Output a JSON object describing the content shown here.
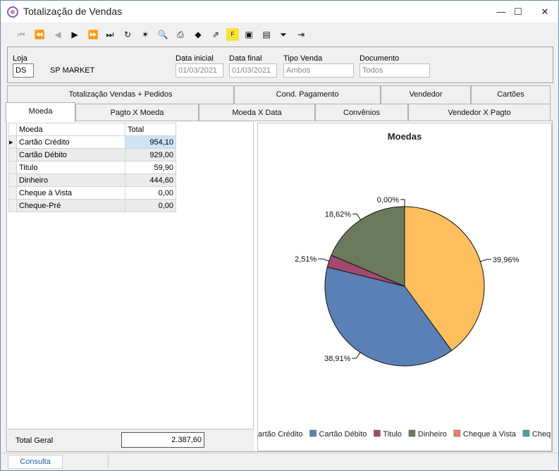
{
  "window": {
    "title": "Totalização de Vendas"
  },
  "window_buttons": {
    "minimize": "—",
    "maximize": "☐",
    "close": "✕"
  },
  "filters": {
    "loja_label": "Loja",
    "loja_value": "DS",
    "loja_name": "SP MARKET",
    "data_inicial_label": "Data inicial",
    "data_inicial_value": "01/03/2021",
    "data_final_label": "Data final",
    "data_final_value": "01/03/2021",
    "tipo_venda_label": "Tipo Venda",
    "tipo_venda_value": "Ambos",
    "documento_label": "Documento",
    "documento_value": "Todos"
  },
  "tabs_row1": [
    {
      "label": "Totalização Vendas + Pedidos"
    },
    {
      "label": "Cond. Pagamento"
    },
    {
      "label": "Vendedor"
    },
    {
      "label": "Cartões"
    }
  ],
  "tabs_row2": [
    {
      "label": "Moeda"
    },
    {
      "label": "Pagto X Moeda"
    },
    {
      "label": "Moeda X Data"
    },
    {
      "label": "Convênios"
    },
    {
      "label": "Vendedor X Pagto"
    }
  ],
  "grid": {
    "headers": [
      "Moeda",
      "Total"
    ],
    "rows": [
      {
        "moeda": "Cartão Crédito",
        "total": "954,10"
      },
      {
        "moeda": "Cartão Débito",
        "total": "929,00"
      },
      {
        "moeda": "Titulo",
        "total": "59,90"
      },
      {
        "moeda": "Dinheiro",
        "total": "444,60"
      },
      {
        "moeda": "Cheque à Vista",
        "total": "0,00"
      },
      {
        "moeda": "Cheque-Pré",
        "total": "0,00"
      }
    ]
  },
  "total_geral": {
    "label": "Total Geral",
    "value": "2.387,60"
  },
  "chart_data": {
    "type": "pie",
    "title": "Moedas",
    "categories": [
      "Cartão Crédito",
      "Cartão Débito",
      "Titulo",
      "Dinheiro",
      "Cheque à Vista",
      "Cheque-Pré"
    ],
    "values": [
      954.1,
      929.0,
      59.9,
      444.6,
      0.0,
      0.0
    ],
    "labels": [
      "39,96%",
      "38,91%",
      "2,51%",
      "18,62%",
      "0,00%",
      "0,00%"
    ],
    "colors": [
      "#ffbf5f",
      "#5b80b8",
      "#a14a6e",
      "#6b7a5c",
      "#e8806a",
      "#4f9e99"
    ],
    "visible_labels": [
      "39,96%",
      "38,91%",
      "2,51%",
      "18,62%",
      "0,00%"
    ],
    "legend": [
      "Cartão Crédito",
      "Cartão Débito",
      "Titulo",
      "Dinheiro",
      "Cheque à Vista",
      "Cheque"
    ],
    "legend_position": "bottom"
  },
  "statusbar": {
    "tab_label": "Consulta"
  }
}
